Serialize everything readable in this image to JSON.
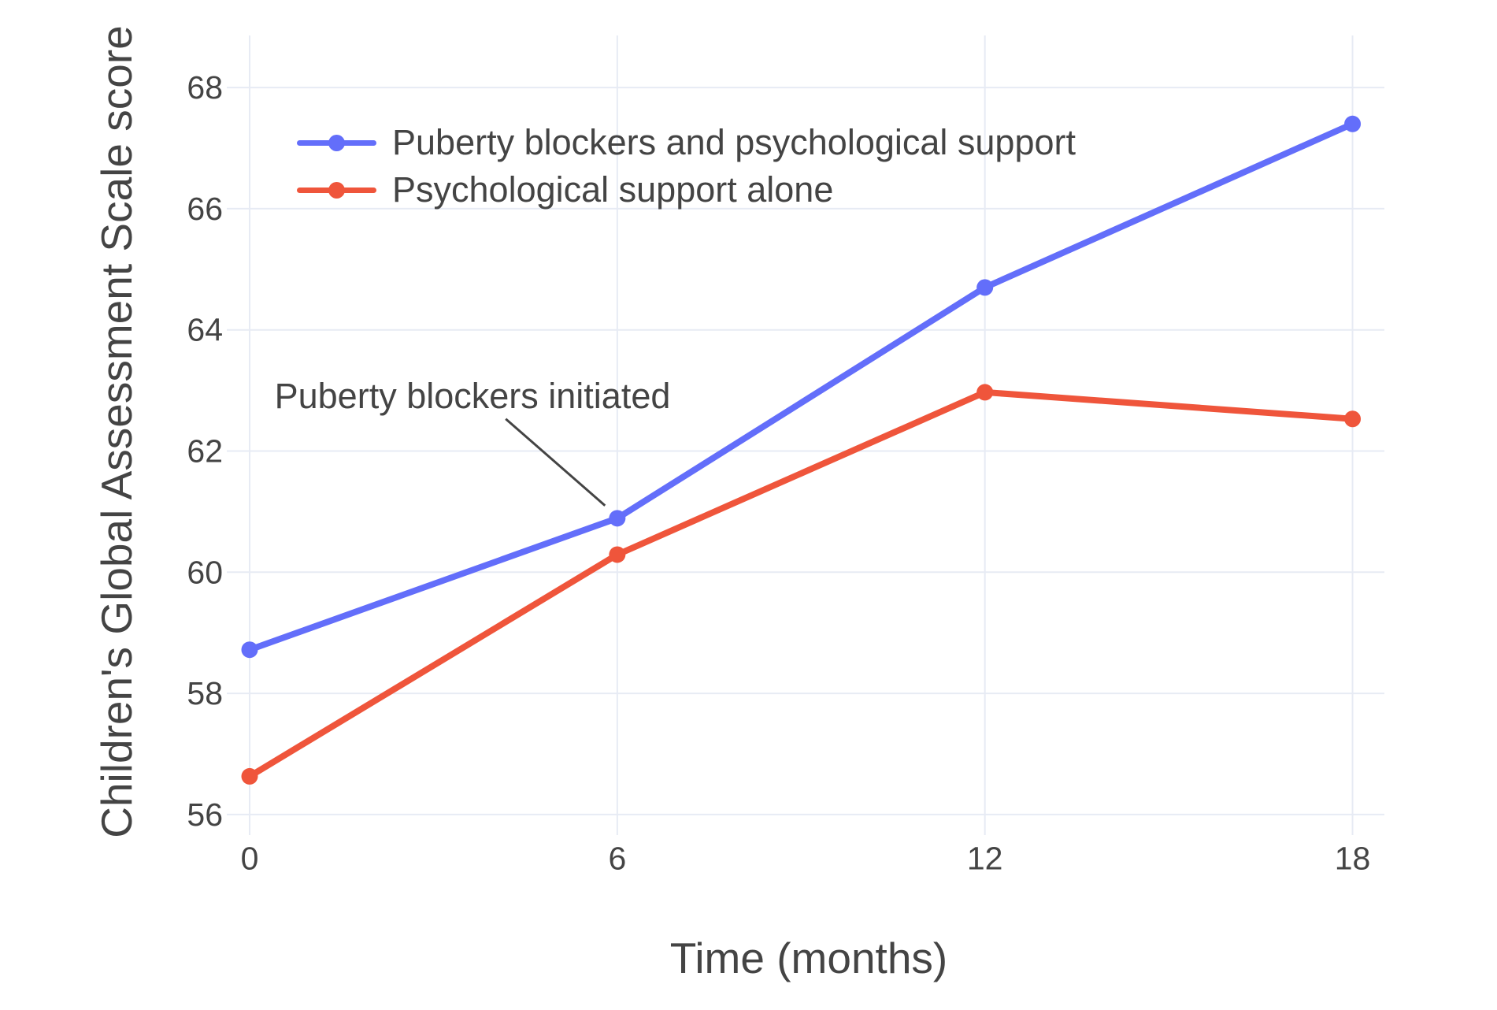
{
  "figure": {
    "background": "#ffffff",
    "text_color": "#444444",
    "grid_color": "#E7EBF4",
    "annotation_line_color": "#444444"
  },
  "chart_data": {
    "type": "line",
    "x": [
      0,
      6,
      12,
      18
    ],
    "series": [
      {
        "name": "Puberty blockers and psychological support",
        "color": "#636EFA",
        "values": [
          58.72,
          60.89,
          64.7,
          67.4
        ]
      },
      {
        "name": "Psychological support alone",
        "color": "#EF553B",
        "values": [
          56.63,
          60.29,
          62.97,
          62.53
        ]
      }
    ],
    "title": "",
    "xlabel": "Time (months)",
    "ylabel": "Children's Global Assessment Scale score",
    "xticks": [
      0,
      6,
      12,
      18
    ],
    "yticks": [
      56,
      58,
      60,
      62,
      64,
      66,
      68
    ],
    "xlim": [
      0,
      18.52
    ],
    "ylim": [
      55.66,
      68.86
    ],
    "grid": true,
    "legend_position": "top-left-inside",
    "annotation": {
      "text": "Puberty blockers initiated",
      "text_x": 3.64,
      "text_y": 62.9,
      "line_x1": 4.18,
      "line_y1": 62.53,
      "line_x2": 5.8,
      "line_y2": 61.1
    }
  }
}
